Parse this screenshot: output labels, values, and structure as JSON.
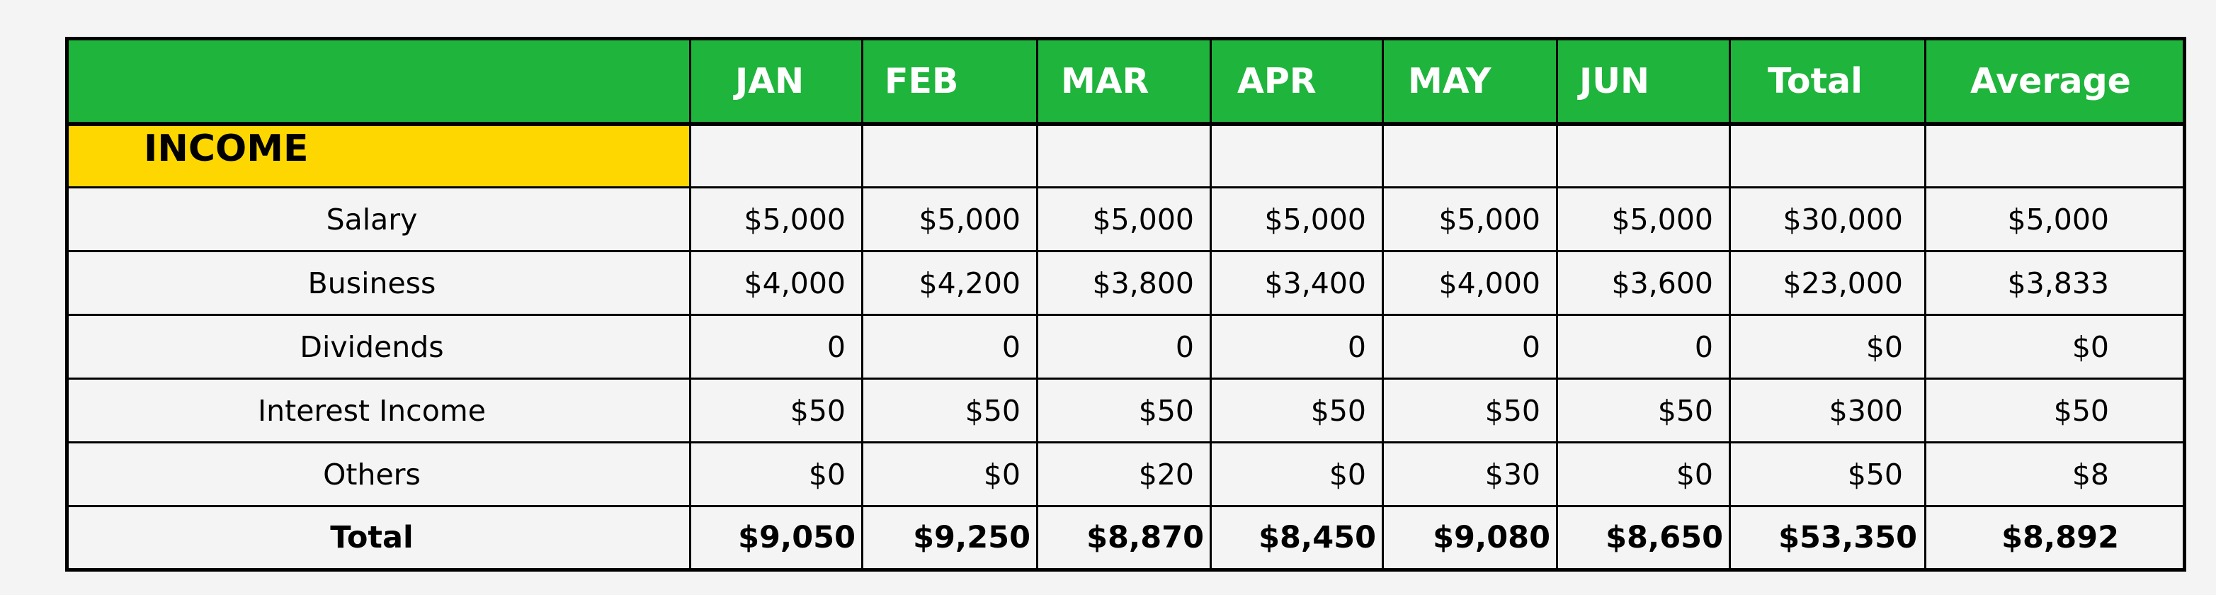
{
  "columns": [
    "JAN",
    "FEB",
    "MAR",
    "APR",
    "MAY",
    "JUN",
    "Total",
    "Average"
  ],
  "section": "INCOME",
  "rows": [
    {
      "label": "Salary",
      "values": [
        "$5,000",
        "$5,000",
        "$5,000",
        "$5,000",
        "$5,000",
        "$5,000",
        "$30,000",
        "$5,000"
      ]
    },
    {
      "label": "Business",
      "values": [
        "$4,000",
        "$4,200",
        "$3,800",
        "$3,400",
        "$4,000",
        "$3,600",
        "$23,000",
        "$3,833"
      ]
    },
    {
      "label": "Dividends",
      "values": [
        "0",
        "0",
        "0",
        "0",
        "0",
        "0",
        "$0",
        "$0"
      ]
    },
    {
      "label": "Interest Income",
      "values": [
        "$50",
        "$50",
        "$50",
        "$50",
        "$50",
        "$50",
        "$300",
        "$50"
      ]
    },
    {
      "label": "Others",
      "values": [
        "$0",
        "$0",
        "$20",
        "$0",
        "$30",
        "$0",
        "$50",
        "$8"
      ]
    }
  ],
  "total": {
    "label": "Total",
    "values": [
      "$9,050",
      "$9,250",
      "$8,870",
      "$8,450",
      "$9,080",
      "$8,650",
      "$53,350",
      "$8,892"
    ]
  },
  "colors": {
    "header_bg": "#1fb43c",
    "header_text": "#ffffff",
    "section_bg": "#ffd700",
    "page_bg": "#f4f4f4"
  }
}
